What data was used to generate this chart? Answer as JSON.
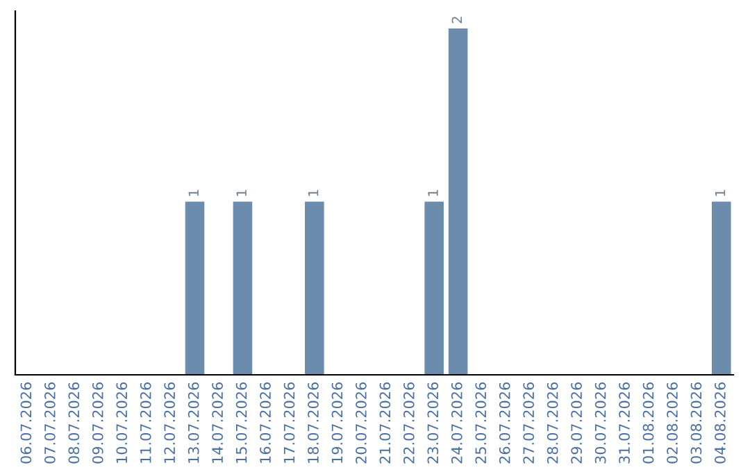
{
  "chart_data": {
    "type": "bar",
    "categories": [
      "06.07.2026",
      "07.07.2026",
      "08.07.2026",
      "09.07.2026",
      "10.07.2026",
      "11.07.2026",
      "12.07.2026",
      "13.07.2026",
      "14.07.2026",
      "15.07.2026",
      "16.07.2026",
      "17.07.2026",
      "18.07.2026",
      "19.07.2026",
      "20.07.2026",
      "21.07.2026",
      "22.07.2026",
      "23.07.2026",
      "24.07.2026",
      "25.07.2026",
      "26.07.2026",
      "27.07.2026",
      "28.07.2026",
      "29.07.2026",
      "30.07.2026",
      "31.07.2026",
      "01.08.2026",
      "02.08.2026",
      "03.08.2026",
      "04.08.2026"
    ],
    "values": [
      0,
      0,
      0,
      0,
      0,
      0,
      0,
      1,
      0,
      1,
      0,
      0,
      1,
      0,
      0,
      0,
      0,
      1,
      2,
      0,
      0,
      0,
      0,
      0,
      0,
      0,
      0,
      0,
      0,
      1
    ],
    "value_labels": [
      null,
      null,
      null,
      null,
      null,
      null,
      null,
      "1",
      null,
      "1",
      null,
      null,
      "1",
      null,
      null,
      null,
      null,
      "1",
      "2",
      null,
      null,
      null,
      null,
      null,
      null,
      null,
      null,
      null,
      null,
      "1"
    ],
    "color": "#6b8cac",
    "grid": false,
    "legend": false
  }
}
